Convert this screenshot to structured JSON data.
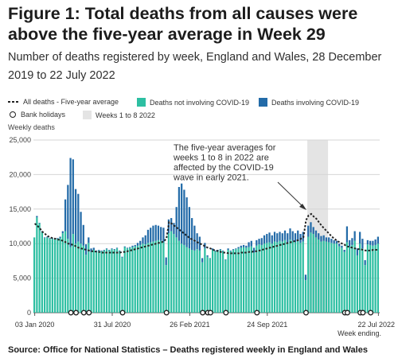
{
  "title": "Figure 1: Total deaths from all causes were above the five-year average in Week 29",
  "subtitle": "Number of deaths registered by week, England and Wales, 28 December 2019 to 22 July 2022",
  "legend": {
    "avg": "All deaths - Five-year average",
    "not_covid": "Deaths not involving COVID-19",
    "covid": "Deaths involving COVID-19",
    "bank": "Bank holidays",
    "weeks": "Weeks 1 to 8 2022"
  },
  "source": "Source: Office for National Statistics – Deaths registered weekly in England and Wales",
  "chart_data": {
    "type": "bar",
    "ylabel": "Weekly deaths",
    "xlabel_note": "Week ending",
    "ylim": [
      0,
      25000
    ],
    "yticks": [
      "0",
      "5,000",
      "10,000",
      "15,000",
      "20,000",
      "25,000"
    ],
    "xticks": [
      "03 Jan 2020",
      "31 Jul 2020",
      "26 Feb 2021",
      "24 Sep 2021",
      "22 Jul 2022"
    ],
    "grid": true,
    "colors": {
      "not_covid": "#2dbfa2",
      "covid": "#236ba8",
      "avg": "#222222",
      "shade": "#e4e4e4"
    },
    "annotation": "The five-year averages for weeks 1 to 8 in 2022 are affected by the COVID-19 wave in early 2021.",
    "shaded_weeks": [
      106,
      113
    ],
    "bank_holiday_weeks": [
      14,
      16,
      19,
      21,
      34,
      51,
      65,
      67,
      68,
      74,
      86,
      105,
      120,
      121,
      126,
      127,
      130
    ],
    "series": [
      {
        "name": "Deaths not involving COVID-19",
        "values": [
          10900,
          13800,
          12900,
          11700,
          10800,
          10900,
          10700,
          10700,
          10600,
          10700,
          10800,
          11500,
          11800,
          10700,
          9500,
          11400,
          10000,
          10300,
          10000,
          9700,
          8400,
          10100,
          8800,
          9100,
          8800,
          9000,
          8900,
          9000,
          9200,
          9000,
          9200,
          9100,
          9300,
          8900,
          8000,
          9500,
          9300,
          9400,
          9500,
          9600,
          9700,
          9800,
          10000,
          9900,
          10100,
          10200,
          10300,
          10400,
          10500,
          10400,
          10200,
          6900,
          11500,
          11800,
          11400,
          10900,
          10400,
          10000,
          9800,
          9500,
          9300,
          9100,
          9000,
          9200,
          9000,
          7300,
          9300,
          8100,
          7800,
          9100,
          8900,
          9000,
          9100,
          8900,
          7600,
          9100,
          8900,
          9100,
          9200,
          9300,
          9400,
          9500,
          9400,
          9500,
          9600,
          8700,
          9700,
          9900,
          9800,
          10000,
          10100,
          10200,
          10000,
          10300,
          10200,
          10400,
          10300,
          10500,
          10200,
          10600,
          10400,
          10200,
          10500,
          10100,
          10300,
          4700,
          11000,
          11600,
          11400,
          10900,
          10600,
          10300,
          10400,
          10300,
          10200,
          10100,
          10000,
          10000,
          9600,
          9400,
          8800,
          10200,
          9600,
          9800,
          10400,
          8300,
          10000,
          9300,
          6900,
          9900,
          9800,
          9700,
          9800,
          10000
        ],
        "total": [
          10900,
          14000,
          13000,
          11800,
          10900,
          11000,
          10800,
          10800,
          10700,
          10800,
          11000,
          11800,
          16400,
          18500,
          22400,
          22200,
          17900,
          17200,
          14600,
          12700,
          9900,
          10900,
          9300,
          9400,
          9000,
          9100,
          9000,
          9100,
          9300,
          9100,
          9300,
          9200,
          9400,
          9000,
          8100,
          9600,
          9400,
          9500,
          9700,
          9800,
          10100,
          10400,
          10900,
          11200,
          12000,
          12300,
          12600,
          12700,
          12600,
          12400,
          12300,
          8000,
          13500,
          13700,
          13000,
          15300,
          18200,
          18700,
          17800,
          16700,
          15300,
          13700,
          12600,
          11500,
          11000,
          7900,
          10100,
          8300,
          7900,
          9300,
          9000,
          9100,
          9200,
          9000,
          7700,
          9300,
          9000,
          9200,
          9300,
          9500,
          9700,
          9800,
          9700,
          10200,
          10400,
          9400,
          10500,
          10700,
          10800,
          11200,
          11400,
          11600,
          11200,
          11700,
          11500,
          11700,
          11500,
          11900,
          11500,
          12200,
          11800,
          11500,
          11900,
          11400,
          11700,
          5500,
          12600,
          13100,
          12400,
          11900,
          11500,
          11100,
          11200,
          10900,
          10900,
          10700,
          10500,
          10400,
          10000,
          9700,
          9100,
          12500,
          10500,
          10800,
          11800,
          9300,
          11700,
          10700,
          7600,
          10500,
          10400,
          10400,
          10600,
          11000
        ]
      },
      {
        "name": "All deaths - Five-year average",
        "values": [
          12900,
          12600,
          12200,
          11700,
          11400,
          11100,
          10900,
          10800,
          10700,
          10600,
          10500,
          10400,
          10200,
          10000,
          9900,
          9800,
          9600,
          9400,
          9300,
          9200,
          9100,
          9000,
          8900,
          8900,
          8800,
          8800,
          8700,
          8700,
          8700,
          8700,
          8700,
          8700,
          8700,
          8700,
          8800,
          8800,
          8900,
          9000,
          9100,
          9200,
          9300,
          9400,
          9500,
          9600,
          9700,
          9800,
          9900,
          10000,
          10100,
          10200,
          10300,
          10800,
          13100,
          12900,
          12600,
          12300,
          12000,
          11700,
          11400,
          11100,
          10800,
          10600,
          10400,
          10200,
          10000,
          9800,
          9600,
          9400,
          9300,
          9100,
          9000,
          8900,
          8800,
          8700,
          8700,
          8600,
          8600,
          8600,
          8600,
          8600,
          8700,
          8700,
          8700,
          8800,
          8800,
          8900,
          8900,
          9000,
          9100,
          9200,
          9300,
          9400,
          9500,
          9600,
          9700,
          9800,
          9900,
          10000,
          10100,
          10200,
          10300,
          10400,
          10500,
          10700,
          10900,
          13400,
          14100,
          14300,
          13900,
          13600,
          13100,
          12600,
          12200,
          11800,
          11400,
          11000,
          10700,
          10400,
          10200,
          10000,
          9800,
          9600,
          9500,
          9400,
          9300,
          9200,
          9200,
          9100,
          9000,
          9000,
          9000,
          9100,
          9100,
          9100
        ]
      }
    ]
  }
}
